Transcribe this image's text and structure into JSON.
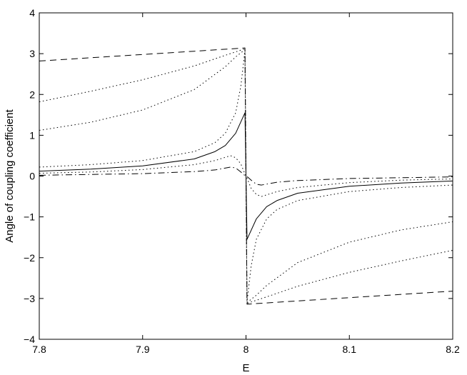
{
  "chart_data": {
    "type": "line",
    "title": "",
    "xlabel": "E",
    "ylabel": "Angle of coupling coefficient",
    "xlim": [
      7.8,
      8.2
    ],
    "ylim": [
      -4,
      4
    ],
    "xticks": [
      7.8,
      7.9,
      8.0,
      8.1,
      8.2
    ],
    "xtick_labels": [
      "7.8",
      "7.9",
      "8",
      "8.1",
      "8.2"
    ],
    "yticks": [
      -4,
      -3,
      -2,
      -1,
      0,
      1,
      2,
      3,
      4
    ],
    "ytick_labels": [
      "−4",
      "−3",
      "−2",
      "−1",
      "0",
      "1",
      "2",
      "3",
      "4"
    ],
    "grid": false,
    "legend": "none",
    "series": [
      {
        "style": "dashed",
        "x": [
          7.8,
          7.85,
          7.9,
          7.95,
          7.999,
          8.0,
          8.001,
          8.05,
          8.1,
          8.15,
          8.2
        ],
        "y": [
          2.82,
          2.9,
          2.98,
          3.06,
          3.14,
          0.0,
          -3.14,
          -3.06,
          -2.98,
          -2.9,
          -2.82
        ]
      },
      {
        "style": "dotted",
        "x": [
          7.8,
          7.85,
          7.9,
          7.95,
          7.98,
          7.999,
          8.0,
          8.001,
          8.02,
          8.05,
          8.1,
          8.15,
          8.2
        ],
        "y": [
          1.82,
          2.08,
          2.36,
          2.7,
          2.96,
          3.12,
          0.0,
          -3.12,
          -2.96,
          -2.7,
          -2.36,
          -2.08,
          -1.82
        ]
      },
      {
        "style": "dotted",
        "x": [
          7.8,
          7.85,
          7.9,
          7.95,
          7.98,
          7.99,
          7.999,
          8.0,
          8.001,
          8.01,
          8.02,
          8.05,
          8.1,
          8.15,
          8.2
        ],
        "y": [
          1.12,
          1.32,
          1.62,
          2.12,
          2.68,
          2.92,
          3.1,
          0.0,
          -3.1,
          -2.92,
          -2.68,
          -2.12,
          -1.62,
          -1.32,
          -1.12
        ]
      },
      {
        "style": "solid",
        "x": [
          7.8,
          7.85,
          7.9,
          7.95,
          7.97,
          7.98,
          7.99,
          7.999,
          8.0,
          8.001,
          8.01,
          8.02,
          8.03,
          8.05,
          8.1,
          8.15,
          8.2
        ],
        "y": [
          0.12,
          0.17,
          0.25,
          0.42,
          0.6,
          0.75,
          1.05,
          1.55,
          0.0,
          -1.55,
          -1.05,
          -0.75,
          -0.6,
          -0.42,
          -0.25,
          -0.17,
          -0.12
        ]
      },
      {
        "style": "dotted",
        "x": [
          7.8,
          7.85,
          7.9,
          7.95,
          7.97,
          7.98,
          7.99,
          7.995,
          7.999,
          8.0,
          8.001,
          8.005,
          8.01,
          8.02,
          8.03,
          8.05,
          8.1,
          8.15,
          8.2
        ],
        "y": [
          0.22,
          0.28,
          0.38,
          0.6,
          0.82,
          1.05,
          1.55,
          2.2,
          3.08,
          0.0,
          -3.08,
          -2.2,
          -1.55,
          -1.05,
          -0.82,
          -0.6,
          -0.38,
          -0.28,
          -0.22
        ]
      },
      {
        "style": "dotted",
        "x": [
          7.8,
          7.85,
          7.9,
          7.95,
          7.97,
          7.985,
          7.99,
          7.995,
          7.999,
          8.0,
          8.001,
          8.005,
          8.01,
          8.015,
          8.03,
          8.05,
          8.1,
          8.15,
          8.2
        ],
        "y": [
          0.07,
          0.1,
          0.16,
          0.28,
          0.38,
          0.5,
          0.45,
          0.3,
          0.05,
          0.0,
          -0.05,
          -0.3,
          -0.45,
          -0.5,
          -0.38,
          -0.28,
          -0.16,
          -0.1,
          -0.07
        ]
      },
      {
        "style": "dashdot",
        "x": [
          7.8,
          7.85,
          7.9,
          7.95,
          7.97,
          7.985,
          7.99,
          7.995,
          7.999,
          8.0,
          8.001,
          8.005,
          8.01,
          8.015,
          8.03,
          8.05,
          8.1,
          8.15,
          8.2
        ],
        "y": [
          0.02,
          0.04,
          0.06,
          0.11,
          0.15,
          0.22,
          0.2,
          0.1,
          0.01,
          0.0,
          -0.01,
          -0.1,
          -0.2,
          -0.22,
          -0.15,
          -0.11,
          -0.06,
          -0.04,
          -0.02
        ]
      }
    ]
  }
}
